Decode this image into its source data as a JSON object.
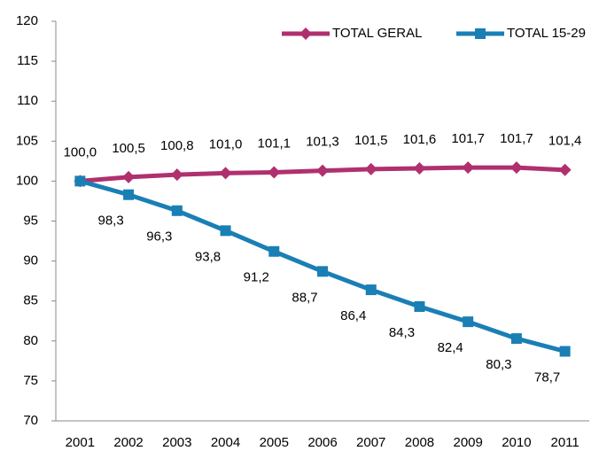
{
  "chart_data": {
    "type": "line",
    "categories": [
      "2001",
      "2002",
      "2003",
      "2004",
      "2005",
      "2006",
      "2007",
      "2008",
      "2009",
      "2010",
      "2011"
    ],
    "series": [
      {
        "name": "TOTAL GERAL",
        "color": "#b0306f",
        "marker": "diamond",
        "values": [
          100.0,
          100.5,
          100.8,
          101.0,
          101.1,
          101.3,
          101.5,
          101.6,
          101.7,
          101.7,
          101.4
        ],
        "value_labels": [
          "100,0",
          "100,5",
          "100,8",
          "101,0",
          "101,1",
          "101,3",
          "101,5",
          "101,6",
          "101,7",
          "101,7",
          "101,4"
        ]
      },
      {
        "name": "TOTAL 15-29",
        "color": "#1a7fb5",
        "marker": "square",
        "values": [
          100.0,
          98.3,
          96.3,
          93.8,
          91.2,
          88.7,
          86.4,
          84.3,
          82.4,
          80.3,
          78.7
        ],
        "value_labels": [
          "100,0",
          "98,3",
          "96,3",
          "93,8",
          "91,2",
          "88,7",
          "86,4",
          "84,3",
          "82,4",
          "80,3",
          "78,7"
        ]
      }
    ],
    "ylim": [
      70,
      120
    ],
    "yticks": [
      70,
      75,
      80,
      85,
      90,
      95,
      100,
      105,
      110,
      115,
      120
    ],
    "grid": false,
    "legend": "top-right"
  }
}
